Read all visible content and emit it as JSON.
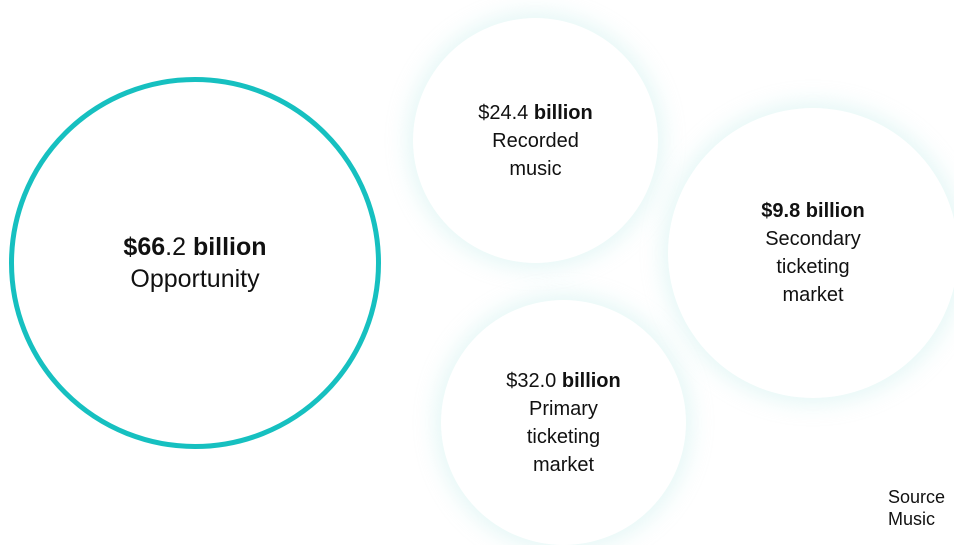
{
  "accent_color": "#16c0c0",
  "bubbles": {
    "opportunity": {
      "currency": "$",
      "amount_bold": "66",
      "amount_rest": ".2",
      "unit": "billion",
      "label": "Opportunity"
    },
    "recorded_music": {
      "currency": "$",
      "amount_bold": "",
      "amount_rest": "24.4",
      "unit": "billion",
      "label": "Recorded\nmusic"
    },
    "secondary_ticketing": {
      "currency": "$",
      "amount_bold": "9.8",
      "amount_rest": "",
      "unit": "billion",
      "label": "Secondary\nticketing\nmarket"
    },
    "primary_ticketing": {
      "currency": "$",
      "amount_bold": "",
      "amount_rest": "32.0",
      "unit": "billion",
      "label": "Primary\nticketing\nmarket"
    }
  },
  "source_note": "Source\nMusic"
}
